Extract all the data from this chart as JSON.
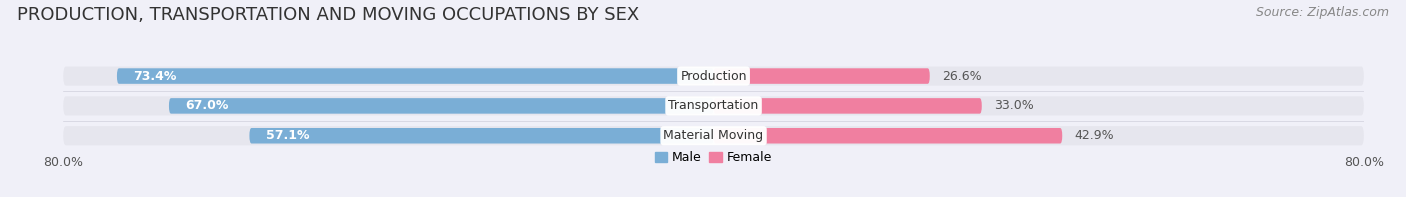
{
  "title": "PRODUCTION, TRANSPORTATION AND MOVING OCCUPATIONS BY SEX",
  "source": "Source: ZipAtlas.com",
  "categories": [
    "Production",
    "Transportation",
    "Material Moving"
  ],
  "male_pcts": [
    73.4,
    67.0,
    57.1
  ],
  "female_pcts": [
    26.6,
    33.0,
    42.9
  ],
  "male_color": "#7aaed6",
  "female_color": "#f07fa0",
  "bar_bg_color": "#e6e6ee",
  "xlim": [
    -80,
    80
  ],
  "xtick_label": "80.0%",
  "title_fontsize": 13,
  "source_fontsize": 9,
  "pct_fontsize": 9,
  "cat_fontsize": 9,
  "bar_height": 0.52,
  "background_color": "#f0f0f8",
  "legend_male": "Male",
  "legend_female": "Female"
}
